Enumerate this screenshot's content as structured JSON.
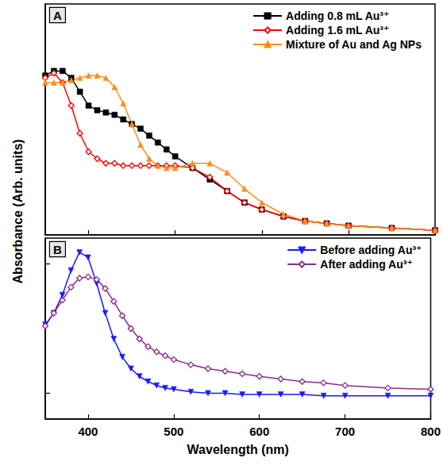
{
  "chart_data": [
    {
      "type": "line",
      "title": "A",
      "x": [
        350,
        360,
        370,
        380,
        390,
        400,
        410,
        420,
        430,
        440,
        450,
        460,
        470,
        480,
        490,
        500,
        520,
        540,
        560,
        580,
        600,
        625,
        650,
        675,
        700,
        750,
        800
      ],
      "series": [
        {
          "name": "Adding 0.8 mL Au³⁺",
          "color": "#000000",
          "marker": "square",
          "line_style": "solid",
          "values": [
            0.69,
            0.71,
            0.71,
            0.68,
            0.62,
            0.56,
            0.54,
            0.53,
            0.52,
            0.5,
            0.48,
            0.46,
            0.43,
            0.4,
            0.37,
            0.34,
            0.29,
            0.24,
            0.19,
            0.14,
            0.11,
            0.08,
            0.06,
            0.05,
            0.04,
            0.03,
            0.02
          ]
        },
        {
          "name": "Adding 1.6 mL Au³⁺",
          "color": "#ff0000",
          "marker": "diamond-open",
          "line_style": "solid",
          "values": [
            0.68,
            0.7,
            0.66,
            0.56,
            0.44,
            0.36,
            0.33,
            0.31,
            0.31,
            0.3,
            0.3,
            0.3,
            0.3,
            0.3,
            0.3,
            0.3,
            0.29,
            0.25,
            0.19,
            0.14,
            0.11,
            0.08,
            0.06,
            0.05,
            0.04,
            0.03,
            0.02
          ]
        },
        {
          "name": "Mixture of Au and Ag NPs",
          "color": "#ff8c1a",
          "marker": "triangle",
          "line_style": "solid",
          "values": [
            0.66,
            0.66,
            0.66,
            0.67,
            0.68,
            0.69,
            0.69,
            0.68,
            0.64,
            0.57,
            0.48,
            0.39,
            0.33,
            0.3,
            0.29,
            0.29,
            0.31,
            0.31,
            0.27,
            0.2,
            0.14,
            0.09,
            0.06,
            0.05,
            0.04,
            0.03,
            0.02
          ]
        }
      ],
      "xlim": [
        350,
        800
      ],
      "xticks": [
        400,
        500,
        600,
        700,
        800
      ],
      "ylim": [
        0,
        1
      ],
      "tick_labels": false,
      "grid": false,
      "legend": "upper right"
    },
    {
      "type": "line",
      "title": "B",
      "xlabel": "Wavelength (nm)",
      "ylabel": "Absorbance (Arb. units)",
      "x": [
        350,
        360,
        370,
        380,
        390,
        400,
        410,
        420,
        430,
        440,
        450,
        460,
        470,
        480,
        490,
        500,
        520,
        540,
        560,
        580,
        600,
        625,
        650,
        675,
        700,
        750,
        800
      ],
      "series": [
        {
          "name": "Before adding Au³⁺",
          "color": "#1a1aff",
          "marker": "triangle-down",
          "line_style": "solid",
          "values": [
            0.73,
            0.82,
            0.96,
            1.15,
            1.29,
            1.25,
            1.05,
            0.82,
            0.62,
            0.48,
            0.39,
            0.33,
            0.29,
            0.26,
            0.24,
            0.23,
            0.21,
            0.2,
            0.2,
            0.19,
            0.19,
            0.19,
            0.19,
            0.18,
            0.18,
            0.18,
            0.18
          ]
        },
        {
          "name": "After adding Au³⁺",
          "color": "#8b2c8b",
          "marker": "diamond-open",
          "line_style": "solid",
          "values": [
            0.72,
            0.82,
            0.92,
            1.02,
            1.09,
            1.1,
            1.08,
            1.01,
            0.91,
            0.8,
            0.7,
            0.62,
            0.56,
            0.52,
            0.49,
            0.46,
            0.42,
            0.39,
            0.37,
            0.35,
            0.33,
            0.31,
            0.29,
            0.28,
            0.26,
            0.24,
            0.23
          ]
        }
      ],
      "xlim": [
        350,
        800
      ],
      "xticks": [
        400,
        500,
        600,
        700,
        800
      ],
      "ylim": [
        0,
        1.4
      ],
      "yticks": [
        0.2,
        1.2
      ],
      "tick_labels": "x",
      "grid": false,
      "legend": "upper right"
    }
  ]
}
